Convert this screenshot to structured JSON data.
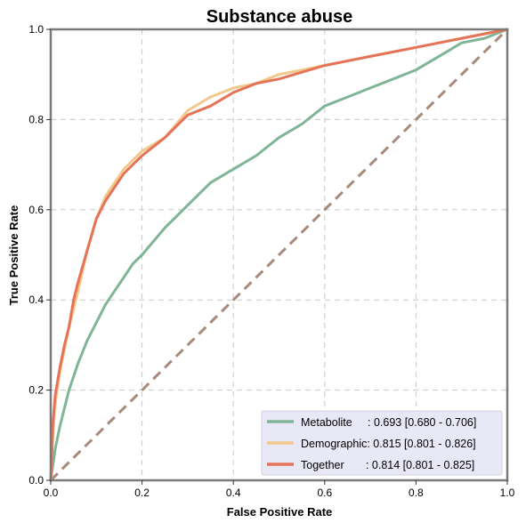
{
  "chart_data": {
    "type": "line",
    "title": "Substance abuse",
    "xlabel": "False Positive Rate",
    "ylabel": "True Positive Rate",
    "xlim": [
      0,
      1
    ],
    "ylim": [
      0,
      1
    ],
    "xticks": [
      "0.0",
      "0.2",
      "0.4",
      "0.6",
      "0.8",
      "1.0"
    ],
    "yticks": [
      "0.0",
      "0.2",
      "0.4",
      "0.6",
      "0.8",
      "1.0"
    ],
    "grid": true,
    "legend_position": "bottom-right",
    "chance_line": {
      "x": [
        0,
        1
      ],
      "y": [
        0,
        1
      ],
      "color": "#a88a7c"
    },
    "series": [
      {
        "name": "Metabolite",
        "legend_label": "Metabolite     : 0.693 [0.680 - 0.706]",
        "color": "#7fb596",
        "x": [
          0,
          0.01,
          0.02,
          0.03,
          0.04,
          0.06,
          0.08,
          0.1,
          0.12,
          0.14,
          0.16,
          0.18,
          0.2,
          0.25,
          0.3,
          0.35,
          0.4,
          0.45,
          0.5,
          0.55,
          0.6,
          0.65,
          0.7,
          0.75,
          0.8,
          0.85,
          0.9,
          0.95,
          1
        ],
        "y": [
          0,
          0.07,
          0.12,
          0.16,
          0.2,
          0.26,
          0.31,
          0.35,
          0.39,
          0.42,
          0.45,
          0.48,
          0.5,
          0.56,
          0.61,
          0.66,
          0.69,
          0.72,
          0.76,
          0.79,
          0.83,
          0.85,
          0.87,
          0.89,
          0.91,
          0.94,
          0.97,
          0.98,
          1
        ]
      },
      {
        "name": "Demographic",
        "legend_label": "Demographic: 0.815 [0.801 - 0.826]",
        "color": "#f2c98c",
        "x": [
          0,
          0.005,
          0.01,
          0.02,
          0.03,
          0.04,
          0.05,
          0.06,
          0.08,
          0.1,
          0.12,
          0.14,
          0.16,
          0.18,
          0.2,
          0.25,
          0.3,
          0.35,
          0.4,
          0.45,
          0.5,
          0.6,
          0.7,
          0.8,
          0.9,
          1
        ],
        "y": [
          0,
          0.11,
          0.17,
          0.24,
          0.29,
          0.34,
          0.38,
          0.42,
          0.51,
          0.58,
          0.63,
          0.66,
          0.69,
          0.71,
          0.73,
          0.76,
          0.82,
          0.85,
          0.87,
          0.88,
          0.9,
          0.92,
          0.94,
          0.96,
          0.98,
          1
        ]
      },
      {
        "name": "Together",
        "legend_label": "Together       : 0.814 [0.801 - 0.825]",
        "color": "#e57358",
        "x": [
          0,
          0.005,
          0.01,
          0.02,
          0.03,
          0.04,
          0.05,
          0.06,
          0.08,
          0.1,
          0.12,
          0.14,
          0.16,
          0.18,
          0.2,
          0.25,
          0.3,
          0.35,
          0.4,
          0.45,
          0.5,
          0.6,
          0.7,
          0.8,
          0.9,
          1
        ],
        "y": [
          0,
          0.13,
          0.19,
          0.25,
          0.3,
          0.34,
          0.4,
          0.44,
          0.51,
          0.58,
          0.62,
          0.65,
          0.68,
          0.7,
          0.72,
          0.76,
          0.81,
          0.83,
          0.86,
          0.88,
          0.89,
          0.92,
          0.94,
          0.96,
          0.98,
          1
        ]
      }
    ]
  }
}
